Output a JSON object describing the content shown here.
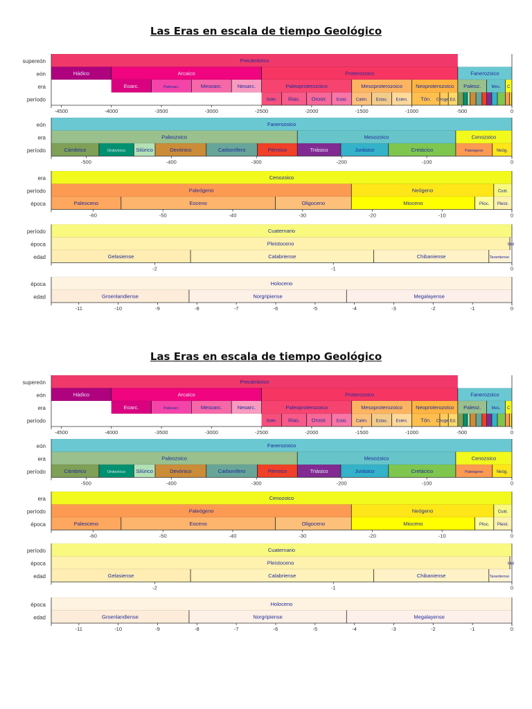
{
  "title": "Las Eras en escala de tiempo Geológico",
  "row_labels": {
    "supereon": "supereón",
    "eon": "eón",
    "era": "era",
    "periodo": "período",
    "epoca": "época",
    "edad": "edad"
  },
  "panels": [
    {
      "id": "all-time",
      "range": [
        -4600,
        0
      ],
      "ticks": [
        -4500,
        -4000,
        -3500,
        -3000,
        -2500,
        -2000,
        -1500,
        -1000,
        -500,
        0
      ],
      "rows": [
        {
          "key": "supereon",
          "bands": [
            {
              "label": "Precámbrico",
              "start": -4600,
              "end": -541,
              "color": "#f0396a"
            }
          ]
        },
        {
          "key": "eon",
          "bands": [
            {
              "label": "Hádico",
              "start": -4600,
              "end": -4000,
              "color": "#ae027e"
            },
            {
              "label": "Arcaico",
              "start": -4000,
              "end": -2500,
              "color": "#f0047f"
            },
            {
              "label": "Proterozoico",
              "start": -2500,
              "end": -541,
              "color": "#f73563"
            },
            {
              "label": "Fanerozoico",
              "start": -541,
              "end": 0,
              "color": "#6ac8d2"
            }
          ]
        },
        {
          "key": "era",
          "bands": [
            {
              "label": "Eoarc.",
              "start": -4000,
              "end": -3600,
              "color": "#da037f"
            },
            {
              "label": "Paleoarc.",
              "start": -3600,
              "end": -3200,
              "color": "#f444a9"
            },
            {
              "label": "Mesoarc.",
              "start": -3200,
              "end": -2800,
              "color": "#f768a9"
            },
            {
              "label": "Neoarc.",
              "start": -2800,
              "end": -2500,
              "color": "#f99bc1"
            },
            {
              "label": "Paleoproterozoico",
              "start": -2500,
              "end": -1600,
              "color": "#f74370"
            },
            {
              "label": "Mesoproterozoico",
              "start": -1600,
              "end": -1000,
              "color": "#fdb462"
            },
            {
              "label": "Neoproterozoico",
              "start": -1000,
              "end": -541,
              "color": "#feb342"
            },
            {
              "label": "Paleoz.",
              "start": -541,
              "end": -252,
              "color": "#99c08d"
            },
            {
              "label": "Mes.",
              "start": -252,
              "end": -66,
              "color": "#67c5ca"
            },
            {
              "label": "C",
              "start": -66,
              "end": 0,
              "color": "#f2f91d"
            }
          ]
        },
        {
          "key": "periodo",
          "bands": [
            {
              "label": "Sidér.",
              "start": -2500,
              "end": -2300,
              "color": "#f74f7c"
            },
            {
              "label": "Rias.",
              "start": -2300,
              "end": -2050,
              "color": "#f75b89"
            },
            {
              "label": "Orosir.",
              "start": -2050,
              "end": -1800,
              "color": "#f76898"
            },
            {
              "label": "Estat.",
              "start": -1800,
              "end": -1600,
              "color": "#f875a7"
            },
            {
              "label": "Calim.",
              "start": -1600,
              "end": -1400,
              "color": "#fdc07a"
            },
            {
              "label": "Ectas.",
              "start": -1400,
              "end": -1200,
              "color": "#f3cc8a"
            },
            {
              "label": "Esten.",
              "start": -1200,
              "end": -1000,
              "color": "#fed99a"
            },
            {
              "label": "Tón.",
              "start": -1000,
              "end": -720,
              "color": "#feBF4e"
            },
            {
              "label": "Criogen.",
              "start": -720,
              "end": -635,
              "color": "#fecc5c"
            },
            {
              "label": "Ed.",
              "start": -635,
              "end": -541,
              "color": "#fed96a"
            },
            {
              "label": "",
              "start": -541,
              "end": -485,
              "color": "#7fa056"
            },
            {
              "label": "",
              "start": -485,
              "end": -444,
              "color": "#009270"
            },
            {
              "label": "",
              "start": -444,
              "end": -419,
              "color": "#b3e1b6"
            },
            {
              "label": "",
              "start": -419,
              "end": -359,
              "color": "#cb8c37"
            },
            {
              "label": "",
              "start": -359,
              "end": -299,
              "color": "#67a599"
            },
            {
              "label": "",
              "start": -299,
              "end": -252,
              "color": "#f04028"
            },
            {
              "label": "",
              "start": -252,
              "end": -201,
              "color": "#812b92"
            },
            {
              "label": "",
              "start": -201,
              "end": -145,
              "color": "#34b2c9"
            },
            {
              "label": "",
              "start": -145,
              "end": -66,
              "color": "#7fc64e"
            },
            {
              "label": "",
              "start": -66,
              "end": -23,
              "color": "#fd9a52"
            },
            {
              "label": "",
              "start": -23,
              "end": -2.6,
              "color": "#ffe619"
            },
            {
              "label": "",
              "start": -2.6,
              "end": 0,
              "color": "#f9f97f"
            }
          ]
        }
      ]
    },
    {
      "id": "phanerozoic",
      "range": [
        -541,
        0
      ],
      "ticks": [
        -500,
        -400,
        -300,
        -200,
        -100,
        0
      ],
      "rows": [
        {
          "key": "eon",
          "bands": [
            {
              "label": "Fanerozoico",
              "start": -541,
              "end": 0,
              "color": "#6ac8d2"
            }
          ]
        },
        {
          "key": "era",
          "bands": [
            {
              "label": "Paleozoico",
              "start": -541,
              "end": -252,
              "color": "#99c08d"
            },
            {
              "label": "Mesozoico",
              "start": -252,
              "end": -66,
              "color": "#67c5ca"
            },
            {
              "label": "Cenozoico",
              "start": -66,
              "end": 0,
              "color": "#f2f91d"
            }
          ]
        },
        {
          "key": "periodo",
          "bands": [
            {
              "label": "Cámbrico",
              "start": -541,
              "end": -485,
              "color": "#7fa056"
            },
            {
              "label": "Ordovícico",
              "start": -485,
              "end": -444,
              "color": "#009270"
            },
            {
              "label": "Silúrico",
              "start": -444,
              "end": -419,
              "color": "#b3e1b6"
            },
            {
              "label": "Devónico",
              "start": -419,
              "end": -359,
              "color": "#cb8c37"
            },
            {
              "label": "Carbonífero",
              "start": -359,
              "end": -299,
              "color": "#67a599"
            },
            {
              "label": "Pérmico",
              "start": -299,
              "end": -252,
              "color": "#f04028"
            },
            {
              "label": "Triásico",
              "start": -252,
              "end": -201,
              "color": "#812b92"
            },
            {
              "label": "Jurásico",
              "start": -201,
              "end": -145,
              "color": "#34b2c9"
            },
            {
              "label": "Cretácico",
              "start": -145,
              "end": -66,
              "color": "#7fc64e"
            },
            {
              "label": "Paleógeno",
              "start": -66,
              "end": -23,
              "color": "#fd9a52"
            },
            {
              "label": "Neóg.",
              "start": -23,
              "end": 0,
              "color": "#ffe619"
            }
          ]
        }
      ]
    },
    {
      "id": "cenozoic",
      "range": [
        -66,
        0
      ],
      "ticks": [
        -60,
        -50,
        -40,
        -30,
        -20,
        -10,
        0
      ],
      "rows": [
        {
          "key": "era",
          "bands": [
            {
              "label": "Cenozoico",
              "start": -66,
              "end": 0,
              "color": "#f2f91d"
            }
          ]
        },
        {
          "key": "periodo",
          "bands": [
            {
              "label": "Paleógeno",
              "start": -66,
              "end": -23,
              "color": "#fd9a52"
            },
            {
              "label": "Neógeno",
              "start": -23,
              "end": -2.6,
              "color": "#ffe619"
            },
            {
              "label": "Cuat.",
              "start": -2.6,
              "end": 0,
              "color": "#f9f97f"
            }
          ]
        },
        {
          "key": "epoca",
          "bands": [
            {
              "label": "Paleoceno",
              "start": -66,
              "end": -56,
              "color": "#fda75f"
            },
            {
              "label": "Eoceno",
              "start": -56,
              "end": -33.9,
              "color": "#fdb46c"
            },
            {
              "label": "Oligoceno",
              "start": -33.9,
              "end": -23,
              "color": "#fdc07a"
            },
            {
              "label": "Mioceno",
              "start": -23,
              "end": -5.3,
              "color": "#ffff00"
            },
            {
              "label": "Plioc.",
              "start": -5.3,
              "end": -2.6,
              "color": "#ffff99"
            },
            {
              "label": "Pleist.",
              "start": -2.6,
              "end": 0,
              "color": "#fff2ae"
            }
          ]
        }
      ]
    },
    {
      "id": "quaternary",
      "range": [
        -2.58,
        0
      ],
      "ticks": [
        -2,
        -1,
        0
      ],
      "rows": [
        {
          "key": "periodo",
          "bands": [
            {
              "label": "Cuaternario",
              "start": -2.58,
              "end": 0,
              "color": "#f9f97f"
            }
          ]
        },
        {
          "key": "epoca",
          "bands": [
            {
              "label": "Pleistoceno",
              "start": -2.58,
              "end": -0.0117,
              "color": "#fff2ae"
            },
            {
              "label": "Hol",
              "start": -0.0117,
              "end": 0,
              "color": "#fef2e0"
            }
          ]
        },
        {
          "key": "edad",
          "bands": [
            {
              "label": "Gelasiense",
              "start": -2.58,
              "end": -1.8,
              "color": "#ffedb3"
            },
            {
              "label": "Calabriense",
              "start": -1.8,
              "end": -0.774,
              "color": "#fff2ba"
            },
            {
              "label": "Chibaniense",
              "start": -0.774,
              "end": -0.129,
              "color": "#fff2c7"
            },
            {
              "label": "Tarantiense",
              "start": -0.129,
              "end": -0.0117,
              "color": "#fff2d3"
            }
          ]
        }
      ]
    },
    {
      "id": "holocene",
      "range": [
        -11.7,
        0
      ],
      "ticks": [
        -11,
        -10,
        -9,
        -8,
        -7,
        -6,
        -5,
        -4,
        -3,
        -2,
        -1,
        0
      ],
      "rows": [
        {
          "key": "epoca",
          "bands": [
            {
              "label": "Holoceno",
              "start": -11.7,
              "end": 0,
              "color": "#fef2e0"
            }
          ]
        },
        {
          "key": "edad",
          "bands": [
            {
              "label": "Groenlandiense",
              "start": -11.7,
              "end": -8.2,
              "color": "#fdecd9"
            },
            {
              "label": "Norgripiense",
              "start": -8.2,
              "end": -4.2,
              "color": "#fdf0e7"
            },
            {
              "label": "Megalayense",
              "start": -4.2,
              "end": 0,
              "color": "#fdf0ea"
            }
          ]
        }
      ]
    }
  ]
}
